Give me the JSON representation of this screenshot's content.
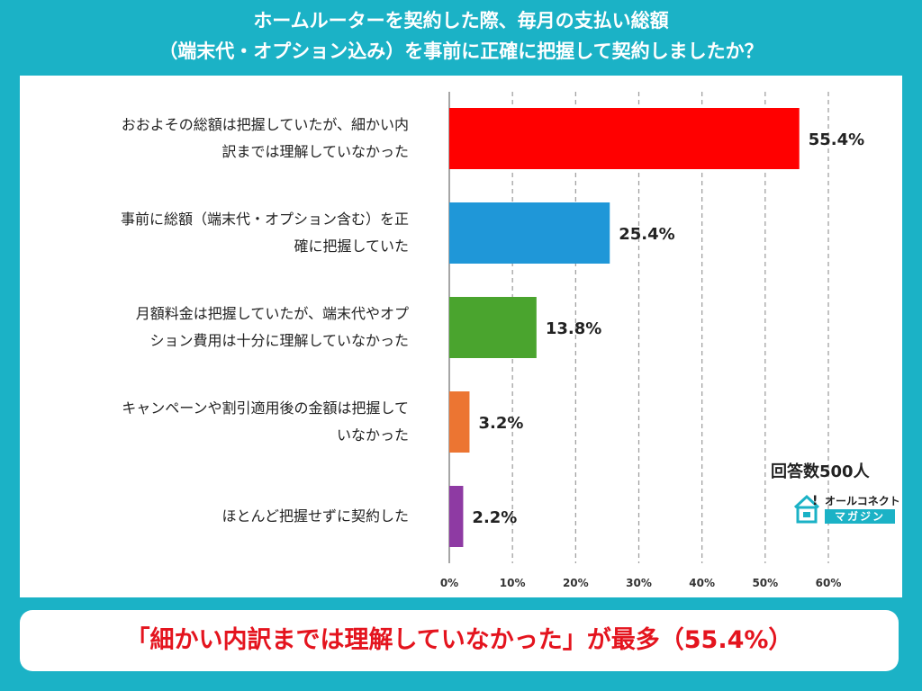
{
  "title": {
    "line1": "ホームルーターを契約した際、毎月の支払い総額",
    "line2": "（端末代・オプション込み）を事前に正確に把握して契約しましたか？"
  },
  "respondents": "回答数500人",
  "logo": {
    "top": "オールコネクト",
    "bottom": "マガジン",
    "icon": "house-icon"
  },
  "banner": "「細かい内訳までは理解していなかった」が最多（55.4%）",
  "chart_data": {
    "type": "bar",
    "orientation": "horizontal",
    "categories": [
      [
        "おおよその総額は把握していたが、細かい内",
        "訳までは理解していなかった"
      ],
      [
        "事前に総額（端末代・オプション含む）を正",
        "確に把握していた"
      ],
      [
        "月額料金は把握していたが、端末代やオプ",
        "ション費用は十分に理解していなかった"
      ],
      [
        "キャンペーンや割引適用後の金額は把握して",
        "いなかった"
      ],
      [
        "ほとんど把握せずに契約した"
      ]
    ],
    "values": [
      55.4,
      25.4,
      13.8,
      3.2,
      2.2
    ],
    "value_labels": [
      "55.4%",
      "25.4%",
      "13.8%",
      "3.2%",
      "2.2%"
    ],
    "colors": [
      "#ff0000",
      "#1f97d8",
      "#4aa42e",
      "#ec7532",
      "#8e3aa3"
    ],
    "xlim": [
      0,
      60
    ],
    "xticks": [
      "0%",
      "10%",
      "20%",
      "30%",
      "40%",
      "50%",
      "60%"
    ],
    "grid": "vertical-dashed"
  }
}
